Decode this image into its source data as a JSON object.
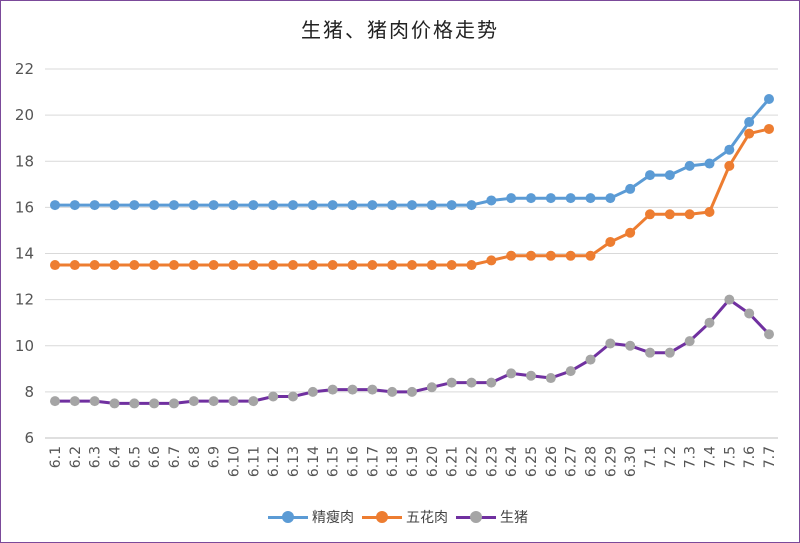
{
  "chart_data": {
    "type": "line",
    "title": "生猪、猪肉价格走势",
    "ylim": [
      6,
      22
    ],
    "yticks": [
      6,
      8,
      10,
      12,
      14,
      16,
      18,
      20,
      22
    ],
    "grid": true,
    "legend_position": "bottom",
    "categories": [
      "6.1",
      "6.2",
      "6.3",
      "6.4",
      "6.5",
      "6.6",
      "6.7",
      "6.8",
      "6.9",
      "6.10",
      "6.11",
      "6.12",
      "6.13",
      "6.14",
      "6.15",
      "6.16",
      "6.17",
      "6.18",
      "6.19",
      "6.20",
      "6.21",
      "6.22",
      "6.23",
      "6.24",
      "6.25",
      "6.26",
      "6.27",
      "6.28",
      "6.29",
      "6.30",
      "7.1",
      "7.2",
      "7.3",
      "7.4",
      "7.5",
      "7.6",
      "7.7"
    ],
    "series": [
      {
        "name": "精瘦肉",
        "line_color": "#5b9bd5",
        "marker_color": "#5b9bd5",
        "values": [
          16.1,
          16.1,
          16.1,
          16.1,
          16.1,
          16.1,
          16.1,
          16.1,
          16.1,
          16.1,
          16.1,
          16.1,
          16.1,
          16.1,
          16.1,
          16.1,
          16.1,
          16.1,
          16.1,
          16.1,
          16.1,
          16.1,
          16.3,
          16.4,
          16.4,
          16.4,
          16.4,
          16.4,
          16.4,
          16.8,
          17.4,
          17.4,
          17.8,
          17.9,
          18.5,
          19.7,
          20.7
        ]
      },
      {
        "name": "五花肉",
        "line_color": "#ed7d31",
        "marker_color": "#ed7d31",
        "values": [
          13.5,
          13.5,
          13.5,
          13.5,
          13.5,
          13.5,
          13.5,
          13.5,
          13.5,
          13.5,
          13.5,
          13.5,
          13.5,
          13.5,
          13.5,
          13.5,
          13.5,
          13.5,
          13.5,
          13.5,
          13.5,
          13.5,
          13.7,
          13.9,
          13.9,
          13.9,
          13.9,
          13.9,
          14.5,
          14.9,
          15.7,
          15.7,
          15.7,
          15.8,
          17.8,
          19.2,
          19.4
        ]
      },
      {
        "name": "生猪",
        "line_color": "#7030a0",
        "marker_color": "#a5a5a5",
        "values": [
          7.6,
          7.6,
          7.6,
          7.5,
          7.5,
          7.5,
          7.5,
          7.6,
          7.6,
          7.6,
          7.6,
          7.8,
          7.8,
          8.0,
          8.1,
          8.1,
          8.1,
          8.0,
          8.0,
          8.2,
          8.4,
          8.4,
          8.4,
          8.8,
          8.7,
          8.6,
          8.9,
          9.4,
          10.1,
          10.0,
          9.7,
          9.7,
          10.2,
          11.0,
          12.0,
          11.4,
          10.5
        ]
      }
    ]
  }
}
